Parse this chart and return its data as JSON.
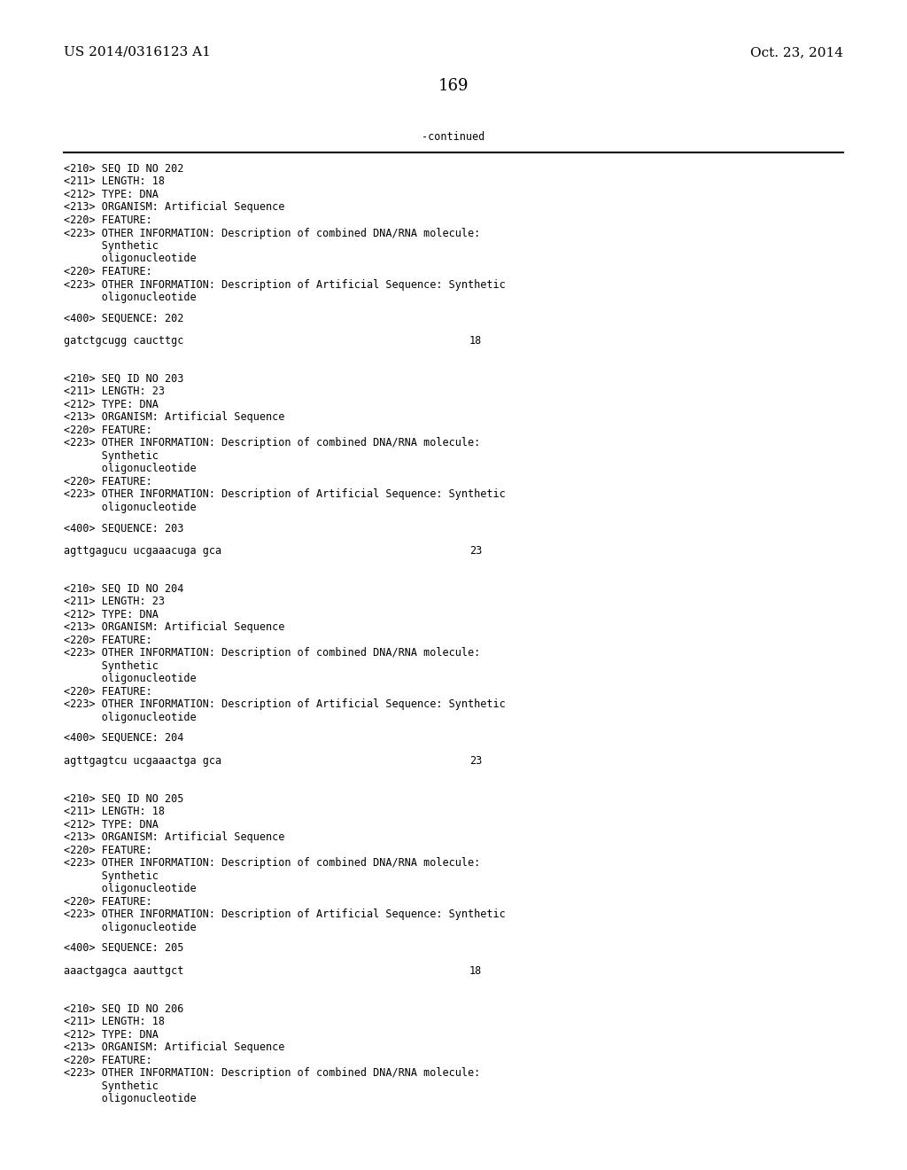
{
  "header_left": "US 2014/0316123 A1",
  "header_right": "Oct. 23, 2014",
  "page_number": "169",
  "continued_label": "-continued",
  "background_color": "#ffffff",
  "text_color": "#000000",
  "font_size_header": 11,
  "font_size_body": 8.5,
  "font_size_page": 13,
  "sections": [
    {
      "lines": [
        "<210> SEQ ID NO 202",
        "<211> LENGTH: 18",
        "<212> TYPE: DNA",
        "<213> ORGANISM: Artificial Sequence",
        "<220> FEATURE:",
        "<223> OTHER INFORMATION: Description of combined DNA/RNA molecule:",
        "      Synthetic",
        "      oligonucleotide",
        "<220> FEATURE:",
        "<223> OTHER INFORMATION: Description of Artificial Sequence: Synthetic",
        "      oligonucleotide"
      ],
      "sequence_label": "<400> SEQUENCE: 202",
      "sequence": "gatctgcugg caucttgc",
      "sequence_number": "18"
    },
    {
      "lines": [
        "<210> SEQ ID NO 203",
        "<211> LENGTH: 23",
        "<212> TYPE: DNA",
        "<213> ORGANISM: Artificial Sequence",
        "<220> FEATURE:",
        "<223> OTHER INFORMATION: Description of combined DNA/RNA molecule:",
        "      Synthetic",
        "      oligonucleotide",
        "<220> FEATURE:",
        "<223> OTHER INFORMATION: Description of Artificial Sequence: Synthetic",
        "      oligonucleotide"
      ],
      "sequence_label": "<400> SEQUENCE: 203",
      "sequence": "agttgagucu ucgaaacuga gca",
      "sequence_number": "23"
    },
    {
      "lines": [
        "<210> SEQ ID NO 204",
        "<211> LENGTH: 23",
        "<212> TYPE: DNA",
        "<213> ORGANISM: Artificial Sequence",
        "<220> FEATURE:",
        "<223> OTHER INFORMATION: Description of combined DNA/RNA molecule:",
        "      Synthetic",
        "      oligonucleotide",
        "<220> FEATURE:",
        "<223> OTHER INFORMATION: Description of Artificial Sequence: Synthetic",
        "      oligonucleotide"
      ],
      "sequence_label": "<400> SEQUENCE: 204",
      "sequence": "agttgagtcu ucgaaactga gca",
      "sequence_number": "23"
    },
    {
      "lines": [
        "<210> SEQ ID NO 205",
        "<211> LENGTH: 18",
        "<212> TYPE: DNA",
        "<213> ORGANISM: Artificial Sequence",
        "<220> FEATURE:",
        "<223> OTHER INFORMATION: Description of combined DNA/RNA molecule:",
        "      Synthetic",
        "      oligonucleotide",
        "<220> FEATURE:",
        "<223> OTHER INFORMATION: Description of Artificial Sequence: Synthetic",
        "      oligonucleotide"
      ],
      "sequence_label": "<400> SEQUENCE: 205",
      "sequence": "aaactgagca aauttgct",
      "sequence_number": "18"
    },
    {
      "lines": [
        "<210> SEQ ID NO 206",
        "<211> LENGTH: 18",
        "<212> TYPE: DNA",
        "<213> ORGANISM: Artificial Sequence",
        "<220> FEATURE:",
        "<223> OTHER INFORMATION: Description of combined DNA/RNA molecule:",
        "      Synthetic",
        "      oligonucleotide"
      ],
      "sequence_label": null,
      "sequence": null,
      "sequence_number": null
    }
  ]
}
